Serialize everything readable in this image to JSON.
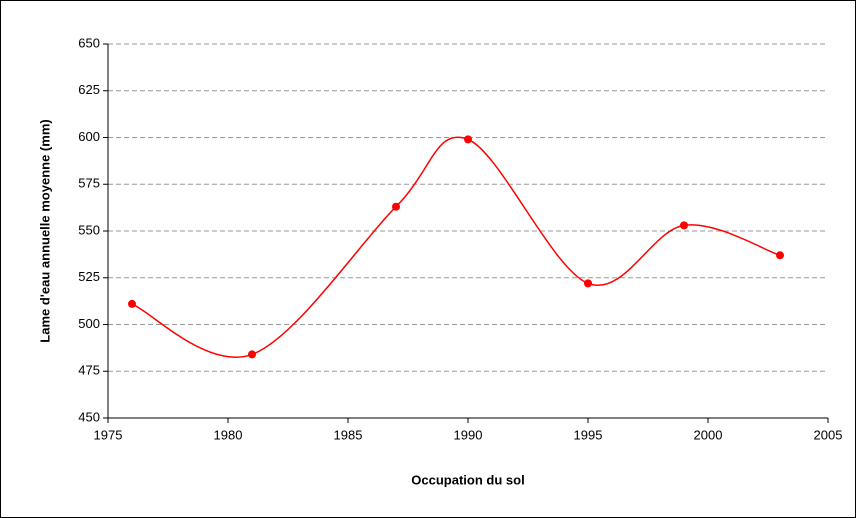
{
  "chart_data": {
    "type": "line",
    "smooth": true,
    "markers": true,
    "x_label": "Occupation du sol",
    "y_label": "Lame d'eau annuelle moyenne (mm)",
    "x": [
      1976,
      1981,
      1987,
      1990,
      1995,
      1999,
      2003
    ],
    "series": [
      {
        "color": "#ff0000",
        "values": [
          511,
          484,
          563,
          599,
          522,
          553,
          537
        ]
      }
    ],
    "xlim": [
      1975,
      2005
    ],
    "xticks": [
      1975,
      1980,
      1985,
      1990,
      1995,
      2000,
      2005
    ],
    "ylim": [
      450,
      650
    ],
    "yticks": [
      450,
      475,
      500,
      525,
      550,
      575,
      600,
      625,
      650
    ],
    "grid": true
  }
}
